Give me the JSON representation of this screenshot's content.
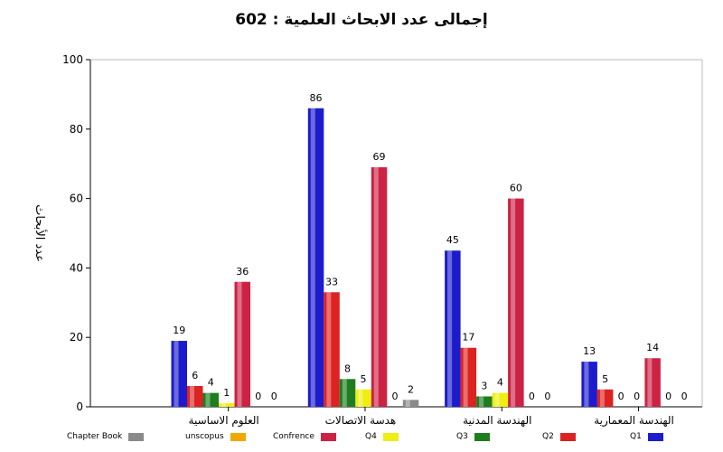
{
  "title": {
    "label": "إجمالى عدد الابحاث العلمية :",
    "total": "602"
  },
  "chart_data": {
    "type": "bar",
    "title": "إجمالى عدد الابحاث العلمية : 602",
    "ylabel": "عدد الأبحاث",
    "xlabel": "",
    "ylim": [
      0,
      100
    ],
    "yticks": [
      0,
      20,
      40,
      60,
      80,
      100
    ],
    "grid": false,
    "legend_position": "bottom",
    "categories": [
      "العلوم الاساسية",
      "هدسة الاتصالات",
      "الهندسة المدنية",
      "الهندسة المعمارية"
    ],
    "series": [
      {
        "name": "Q1",
        "color": "#1c1ccc",
        "values": [
          19,
          86,
          45,
          13
        ]
      },
      {
        "name": "Q2",
        "color": "#dd2222",
        "values": [
          6,
          33,
          17,
          5
        ]
      },
      {
        "name": "Q3",
        "color": "#1e7d1e",
        "values": [
          4,
          8,
          3,
          0
        ]
      },
      {
        "name": "Q4",
        "color": "#eeee11",
        "values": [
          1,
          5,
          4,
          0
        ]
      },
      {
        "name": "Confrence",
        "color": "#cc2244",
        "values": [
          36,
          69,
          60,
          14
        ]
      },
      {
        "name": "unscopus",
        "color": "#f0a800",
        "values": [
          0,
          0,
          0,
          0
        ]
      },
      {
        "name": "Chapter Book",
        "color": "#8a8a8a",
        "values": [
          0,
          2,
          0,
          0
        ]
      }
    ]
  }
}
